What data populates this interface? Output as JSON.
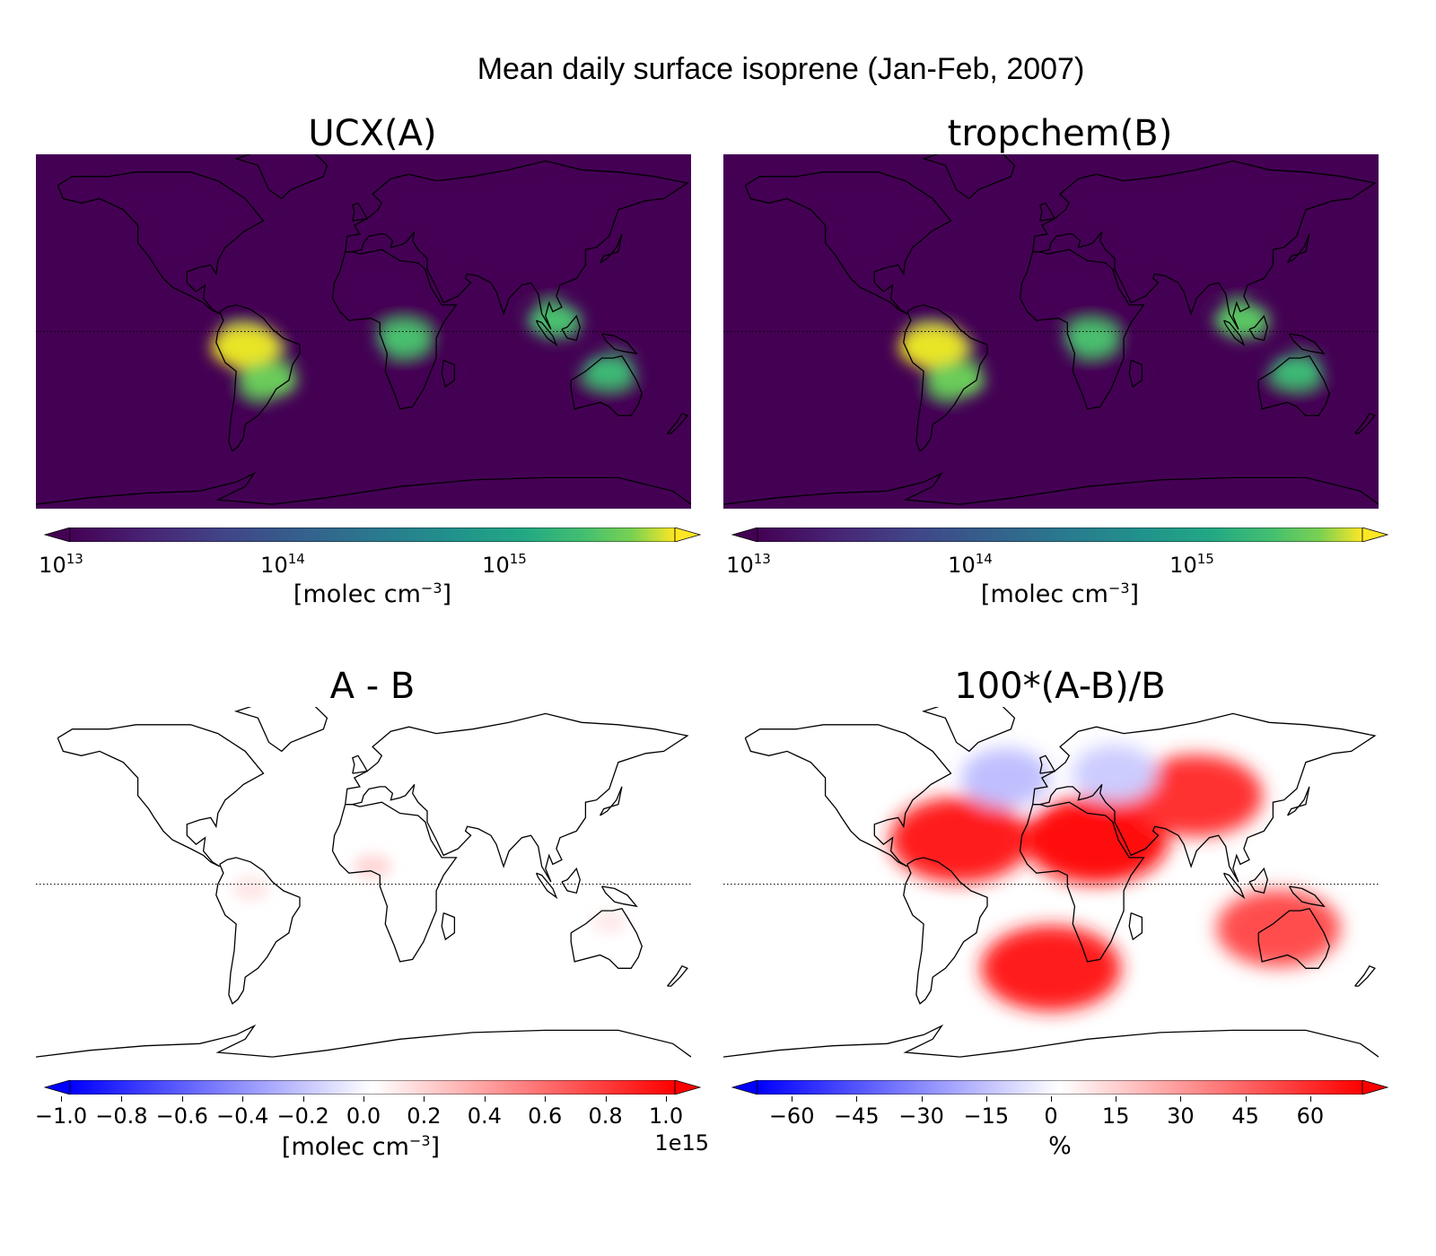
{
  "figure": {
    "title": "Mean daily surface isoprene (Jan-Feb, 2007)"
  },
  "panels": [
    {
      "title": "UCX(A)",
      "kind": "log-concentration",
      "colorbar": {
        "colormap": "viridis",
        "scale": "log",
        "range": [
          10000000000000.0,
          5000000000000000.0
        ],
        "extend": "both",
        "tick_labels": [
          {
            "base": "10",
            "exp": "13"
          },
          {
            "base": "10",
            "exp": "14"
          },
          {
            "base": "10",
            "exp": "15"
          }
        ],
        "label": "[molec cm",
        "label_exp": "−3",
        "label_close": "]"
      },
      "hotspots": [
        {
          "region": "Amazon",
          "lon": -65,
          "lat": -7,
          "level": 0.95
        },
        {
          "region": "Southern Brazil",
          "lon": -52,
          "lat": -22,
          "level": 0.65
        },
        {
          "region": "Central Africa",
          "lon": 22,
          "lat": -3,
          "level": 0.55
        },
        {
          "region": "Southeast Asia",
          "lon": 105,
          "lat": 5,
          "level": 0.55
        },
        {
          "region": "Northern Australia",
          "lon": 135,
          "lat": -18,
          "level": 0.5
        }
      ]
    },
    {
      "title": "tropchem(B)",
      "kind": "log-concentration",
      "colorbar": {
        "colormap": "viridis",
        "scale": "log",
        "range": [
          10000000000000.0,
          5000000000000000.0
        ],
        "extend": "both",
        "tick_labels": [
          {
            "base": "10",
            "exp": "13"
          },
          {
            "base": "10",
            "exp": "14"
          },
          {
            "base": "10",
            "exp": "15"
          }
        ],
        "label": "[molec cm",
        "label_exp": "−3",
        "label_close": "]"
      },
      "hotspots": [
        {
          "region": "Amazon",
          "lon": -65,
          "lat": -7,
          "level": 0.95
        },
        {
          "region": "Southern Brazil",
          "lon": -52,
          "lat": -22,
          "level": 0.65
        },
        {
          "region": "Central Africa",
          "lon": 22,
          "lat": -3,
          "level": 0.55
        },
        {
          "region": "Southeast Asia",
          "lon": 105,
          "lat": 5,
          "level": 0.6
        },
        {
          "region": "Northern Australia",
          "lon": 135,
          "lat": -18,
          "level": 0.5
        }
      ]
    },
    {
      "title": "A - B",
      "kind": "absolute-difference",
      "colorbar": {
        "colormap": "bwr",
        "range": [
          -1.0,
          1.0
        ],
        "extend": "both",
        "tick_labels": [
          "−1.0",
          "−0.8",
          "−0.6",
          "−0.4",
          "−0.2",
          "0.0",
          "0.2",
          "0.4",
          "0.6",
          "0.8",
          "1.0"
        ],
        "offset_text": "1e15",
        "label": "[molec cm",
        "label_exp": "−3",
        "label_close": "]"
      },
      "hotspots": [
        {
          "region": "West Africa",
          "lon": 5,
          "lat": 8,
          "level": 0.15
        },
        {
          "region": "Northern South America",
          "lon": -62,
          "lat": -2,
          "level": 0.1
        },
        {
          "region": "Northern Australia",
          "lon": 135,
          "lat": -17,
          "level": 0.08
        }
      ]
    },
    {
      "title": "100*(A-B)/B",
      "kind": "percent-difference",
      "colorbar": {
        "colormap": "bwr",
        "range": [
          -70,
          70
        ],
        "extend": "both",
        "tick_values": [
          -60,
          -45,
          -30,
          -15,
          0,
          15,
          30,
          45,
          60
        ],
        "tick_labels": [
          "−60",
          "−45",
          "−30",
          "−15",
          "0",
          "15",
          "30",
          "45",
          "60"
        ],
        "label": "%"
      },
      "hotspots": [
        {
          "region": "Sahara / Arabia",
          "lon": 25,
          "lat": 20,
          "level": 0.95
        },
        {
          "region": "South Atlantic",
          "lon": 0,
          "lat": -38,
          "level": 0.9
        },
        {
          "region": "Tropical North Atlantic",
          "lon": -50,
          "lat": 20,
          "level": 0.9
        },
        {
          "region": "Central Asia",
          "lon": 80,
          "lat": 40,
          "level": 0.8
        },
        {
          "region": "Australia",
          "lon": 125,
          "lat": -20,
          "level": 0.7
        },
        {
          "region": "North Atlantic",
          "lon": -25,
          "lat": 48,
          "level": -0.25
        },
        {
          "region": "Eastern Europe",
          "lon": 35,
          "lat": 50,
          "level": -0.2
        }
      ]
    }
  ]
}
